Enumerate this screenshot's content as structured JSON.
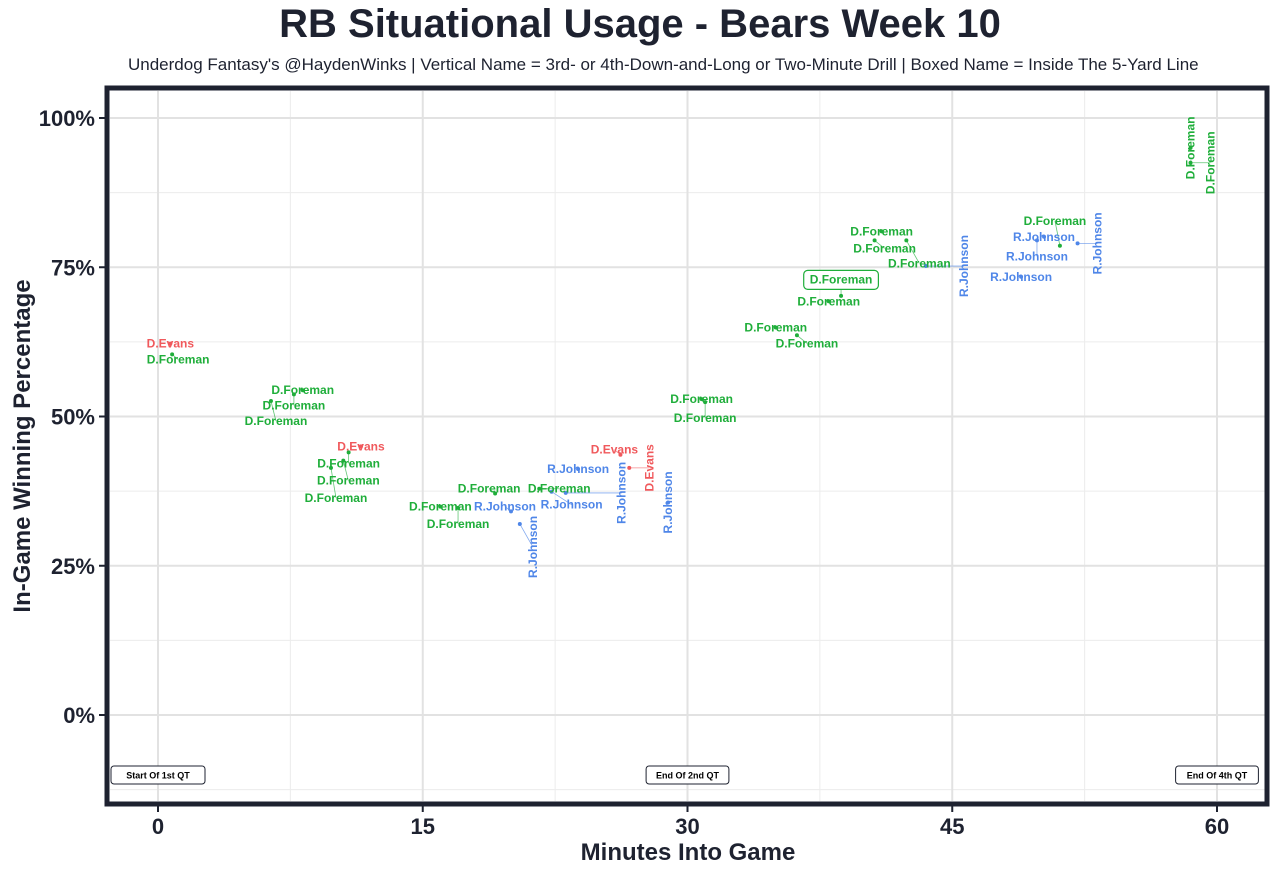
{
  "chart_data": {
    "type": "scatter",
    "title": "RB Situational Usage - Bears Week 10",
    "subtitle": "Underdog Fantasy's @HaydenWinks | Vertical Name = 3rd- or 4th-Down-and-Long or Two-Minute Drill | Boxed Name = Inside The 5-Yard Line",
    "xlabel": "Minutes Into Game",
    "ylabel": "In-Game Winning Percentage",
    "xlim": [
      -3,
      63
    ],
    "ylim": [
      -15,
      105
    ],
    "x_ticks": [
      0,
      15,
      30,
      45,
      60
    ],
    "x_tick_labels": [
      "0",
      "15",
      "30",
      "45",
      "60"
    ],
    "y_ticks": [
      0,
      25,
      50,
      75,
      100
    ],
    "y_tick_labels": [
      "0%",
      "25%",
      "50%",
      "75%",
      "100%"
    ],
    "grid": true,
    "colors": {
      "D.Evans": "#f0595c",
      "D.Foreman": "#1fae3a",
      "R.Johnson": "#4f86e8"
    },
    "annotations": [
      {
        "x": 0,
        "label": "Start Of 1st QT"
      },
      {
        "x": 30,
        "label": "End Of 2nd QT"
      },
      {
        "x": 60,
        "label": "End Of 4th QT"
      }
    ],
    "points": [
      {
        "player": "D.Evans",
        "x": 0.7,
        "y": 62.2,
        "vertical": false,
        "boxed": false
      },
      {
        "player": "D.Foreman",
        "x": 0.8,
        "y": 60.4,
        "vertical": false,
        "boxed": false
      },
      {
        "player": "D.Foreman",
        "x": 8.2,
        "y": 54.4,
        "vertical": false,
        "boxed": false
      },
      {
        "player": "D.Foreman",
        "x": 7.7,
        "y": 53.7,
        "vertical": false,
        "boxed": false
      },
      {
        "player": "D.Foreman",
        "x": 6.4,
        "y": 52.6,
        "vertical": false,
        "boxed": false
      },
      {
        "player": "D.Evans",
        "x": 11.5,
        "y": 45.0,
        "vertical": false,
        "boxed": false
      },
      {
        "player": "D.Foreman",
        "x": 10.8,
        "y": 44.0,
        "vertical": false,
        "boxed": false
      },
      {
        "player": "D.Foreman",
        "x": 10.5,
        "y": 42.6,
        "vertical": false,
        "boxed": false
      },
      {
        "player": "D.Foreman",
        "x": 9.8,
        "y": 41.4,
        "vertical": false,
        "boxed": false
      },
      {
        "player": "D.Foreman",
        "x": 16.0,
        "y": 34.9,
        "vertical": false,
        "boxed": false
      },
      {
        "player": "D.Foreman",
        "x": 17.0,
        "y": 34.7,
        "vertical": false,
        "boxed": false
      },
      {
        "player": "R.Johnson",
        "x": 20.0,
        "y": 34.1,
        "vertical": false,
        "boxed": false
      },
      {
        "player": "D.Foreman",
        "x": 19.1,
        "y": 37.1,
        "vertical": false,
        "boxed": false
      },
      {
        "player": "D.Foreman",
        "x": 21.6,
        "y": 37.9,
        "vertical": false,
        "boxed": false
      },
      {
        "player": "R.Johnson",
        "x": 22.3,
        "y": 37.4,
        "vertical": false,
        "boxed": false
      },
      {
        "player": "R.Johnson",
        "x": 20.5,
        "y": 32.0,
        "vertical": true,
        "boxed": false
      },
      {
        "player": "R.Johnson",
        "x": 23.8,
        "y": 41.2,
        "vertical": false,
        "boxed": false
      },
      {
        "player": "R.Johnson",
        "x": 23.1,
        "y": 37.2,
        "vertical": true,
        "boxed": false
      },
      {
        "player": "D.Evans",
        "x": 26.2,
        "y": 43.6,
        "vertical": false,
        "boxed": false
      },
      {
        "player": "D.Evans",
        "x": 26.7,
        "y": 41.4,
        "vertical": true,
        "boxed": false
      },
      {
        "player": "R.Johnson",
        "x": 28.9,
        "y": 35.6,
        "vertical": true,
        "boxed": false
      },
      {
        "player": "D.Foreman",
        "x": 30.8,
        "y": 52.9,
        "vertical": false,
        "boxed": false
      },
      {
        "player": "D.Foreman",
        "x": 31.0,
        "y": 52.4,
        "vertical": false,
        "boxed": false
      },
      {
        "player": "D.Foreman",
        "x": 35.0,
        "y": 64.9,
        "vertical": false,
        "boxed": false
      },
      {
        "player": "D.Foreman",
        "x": 36.2,
        "y": 63.6,
        "vertical": false,
        "boxed": false
      },
      {
        "player": "D.Foreman",
        "x": 38.0,
        "y": 69.3,
        "vertical": false,
        "boxed": false
      },
      {
        "player": "D.Foreman",
        "x": 38.7,
        "y": 70.2,
        "vertical": false,
        "boxed": true
      },
      {
        "player": "D.Foreman",
        "x": 41.0,
        "y": 81.0,
        "vertical": false,
        "boxed": false
      },
      {
        "player": "D.Foreman",
        "x": 40.6,
        "y": 79.5,
        "vertical": false,
        "boxed": false
      },
      {
        "player": "D.Foreman",
        "x": 42.4,
        "y": 79.5,
        "vertical": false,
        "boxed": false
      },
      {
        "player": "R.Johnson",
        "x": 43.5,
        "y": 75.2,
        "vertical": true,
        "boxed": false
      },
      {
        "player": "R.Johnson",
        "x": 48.9,
        "y": 73.4,
        "vertical": false,
        "boxed": false
      },
      {
        "player": "R.Johnson",
        "x": 50.2,
        "y": 80.1,
        "vertical": false,
        "boxed": false
      },
      {
        "player": "R.Johnson",
        "x": 49.8,
        "y": 79.5,
        "vertical": false,
        "boxed": false
      },
      {
        "player": "D.Foreman",
        "x": 51.1,
        "y": 78.6,
        "vertical": false,
        "boxed": false
      },
      {
        "player": "R.Johnson",
        "x": 52.1,
        "y": 79.0,
        "vertical": true,
        "boxed": false
      },
      {
        "player": "D.Foreman",
        "x": 58.5,
        "y": 95.0,
        "vertical": true,
        "boxed": false
      },
      {
        "player": "D.Foreman",
        "x": 58.5,
        "y": 92.5,
        "vertical": true,
        "boxed": false
      }
    ]
  }
}
